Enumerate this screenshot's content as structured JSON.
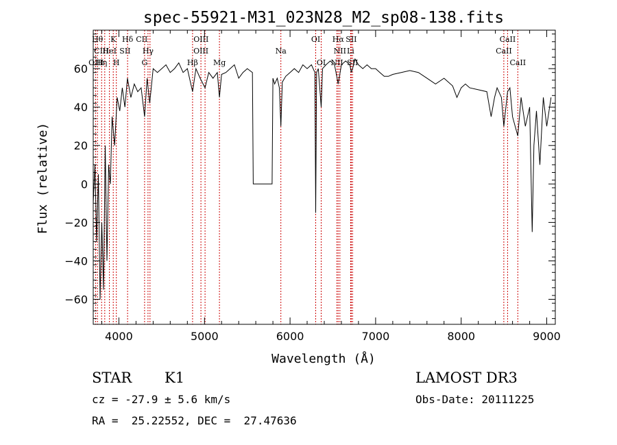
{
  "chart_data": {
    "type": "line",
    "title": "spec-55921-M31_023N28_M2_sp08-138.fits",
    "xlabel": "Wavelength (Å)",
    "ylabel": "Flux (relative)",
    "xlim": [
      3700,
      9100
    ],
    "ylim": [
      -73,
      80
    ],
    "xticks": [
      4000,
      5000,
      6000,
      7000,
      8000,
      9000
    ],
    "yticks": [
      -60,
      -40,
      -20,
      0,
      20,
      40,
      60
    ],
    "grid": false,
    "series": [
      {
        "name": "flux",
        "x": [
          3700,
          3720,
          3740,
          3760,
          3780,
          3800,
          3820,
          3840,
          3860,
          3880,
          3900,
          3920,
          3950,
          3980,
          4010,
          4040,
          4070,
          4100,
          4140,
          4180,
          4220,
          4260,
          4300,
          4330,
          4360,
          4400,
          4450,
          4500,
          4550,
          4600,
          4650,
          4700,
          4750,
          4800,
          4861,
          4900,
          4950,
          5007,
          5050,
          5100,
          5150,
          5175,
          5200,
          5250,
          5300,
          5350,
          5400,
          5450,
          5500,
          5560,
          5570,
          5790,
          5800,
          5820,
          5850,
          5875,
          5893,
          5910,
          5950,
          6000,
          6050,
          6100,
          6150,
          6200,
          6250,
          6290,
          6300,
          6310,
          6330,
          6364,
          6380,
          6420,
          6470,
          6520,
          6563,
          6600,
          6650,
          6700,
          6716,
          6731,
          6760,
          6800,
          6850,
          6900,
          6950,
          7000,
          7050,
          7100,
          7150,
          7200,
          7300,
          7400,
          7500,
          7600,
          7700,
          7800,
          7900,
          7950,
          8000,
          8050,
          8100,
          8200,
          8300,
          8350,
          8390,
          8420,
          8470,
          8498,
          8542,
          8570,
          8600,
          8662,
          8700,
          8750,
          8800,
          8830,
          8850,
          8880,
          8920,
          8960,
          9000,
          9050
        ],
        "y": [
          -10,
          10,
          -30,
          5,
          -60,
          -20,
          -55,
          20,
          -40,
          10,
          0,
          35,
          20,
          45,
          38,
          50,
          40,
          55,
          45,
          52,
          48,
          50,
          35,
          55,
          42,
          60,
          58,
          60,
          62,
          58,
          60,
          63,
          58,
          60,
          48,
          60,
          55,
          50,
          58,
          55,
          58,
          45,
          57,
          58,
          60,
          62,
          55,
          58,
          60,
          58,
          0,
          0,
          55,
          52,
          55,
          50,
          30,
          53,
          56,
          58,
          60,
          58,
          62,
          60,
          62,
          58,
          -15,
          58,
          60,
          40,
          60,
          62,
          64,
          62,
          52,
          62,
          64,
          62,
          58,
          60,
          65,
          62,
          60,
          62,
          60,
          60,
          58,
          56,
          56,
          57,
          58,
          59,
          58,
          55,
          52,
          55,
          51,
          45,
          50,
          52,
          50,
          49,
          48,
          35,
          45,
          50,
          45,
          30,
          48,
          50,
          35,
          25,
          45,
          30,
          40,
          -25,
          20,
          38,
          10,
          45,
          30,
          45
        ]
      }
    ],
    "line_labels": [
      {
        "w": 3750,
        "name": "Hθ",
        "row": 0
      },
      {
        "w": 3795,
        "name": "CIII",
        "row": 1
      },
      {
        "w": 3734,
        "name": "OIII",
        "row": 2
      },
      {
        "w": 3798,
        "name": "Hη",
        "row": 2
      },
      {
        "w": 3890,
        "name": "HeI",
        "row": 1
      },
      {
        "w": 3934,
        "name": "K",
        "row": 0
      },
      {
        "w": 3970,
        "name": "H",
        "row": 2
      },
      {
        "w": 4072,
        "name": "SII",
        "row": 1
      },
      {
        "w": 4101,
        "name": "Hδ",
        "row": 0
      },
      {
        "w": 4267,
        "name": "CII",
        "row": 0
      },
      {
        "w": 4340,
        "name": "Hγ",
        "row": 1
      },
      {
        "w": 4300,
        "name": "G",
        "row": 2
      },
      {
        "w": 4960,
        "name": "OIII",
        "row": 0
      },
      {
        "w": 4959,
        "name": "OIII",
        "row": 1
      },
      {
        "w": 4861,
        "name": "Hβ",
        "row": 2
      },
      {
        "w": 5175,
        "name": "Mg",
        "row": 2
      },
      {
        "w": 5893,
        "name": "Na",
        "row": 1
      },
      {
        "w": 6300,
        "name": "OI",
        "row": 0
      },
      {
        "w": 6364,
        "name": "OI",
        "row": 2
      },
      {
        "w": 6563,
        "name": "Hα",
        "row": 0
      },
      {
        "w": 6583,
        "name": "NII",
        "row": 1
      },
      {
        "w": 6548,
        "name": "NII",
        "row": 2
      },
      {
        "w": 6716,
        "name": "SII",
        "row": 0
      },
      {
        "w": 6708,
        "name": "Li",
        "row": 1
      },
      {
        "w": 6731,
        "name": "SII",
        "row": 2
      },
      {
        "w": 8542,
        "name": "CaII",
        "row": 0
      },
      {
        "w": 8498,
        "name": "CaII",
        "row": 1
      },
      {
        "w": 8662,
        "name": "CaII",
        "row": 2
      }
    ],
    "line_marks": [
      3727,
      3750,
      3798,
      3835,
      3889,
      3934,
      3970,
      4101,
      4300,
      4340,
      4363,
      4861,
      4959,
      5007,
      5175,
      5893,
      6300,
      6364,
      6548,
      6563,
      6583,
      6708,
      6716,
      6731,
      8498,
      8542,
      8662
    ]
  },
  "info": {
    "object_class": "STAR",
    "subclass": "K1",
    "cz": "cz = -27.9 ± 5.6 km/s",
    "coords": "RA =  25.22552, DEC =  27.47636",
    "survey": "LAMOST DR3",
    "obs_date": "Obs-Date: 20111225"
  },
  "colors": {
    "line_marker": "#cc0000",
    "spectrum": "#000000",
    "axis": "#000000"
  }
}
